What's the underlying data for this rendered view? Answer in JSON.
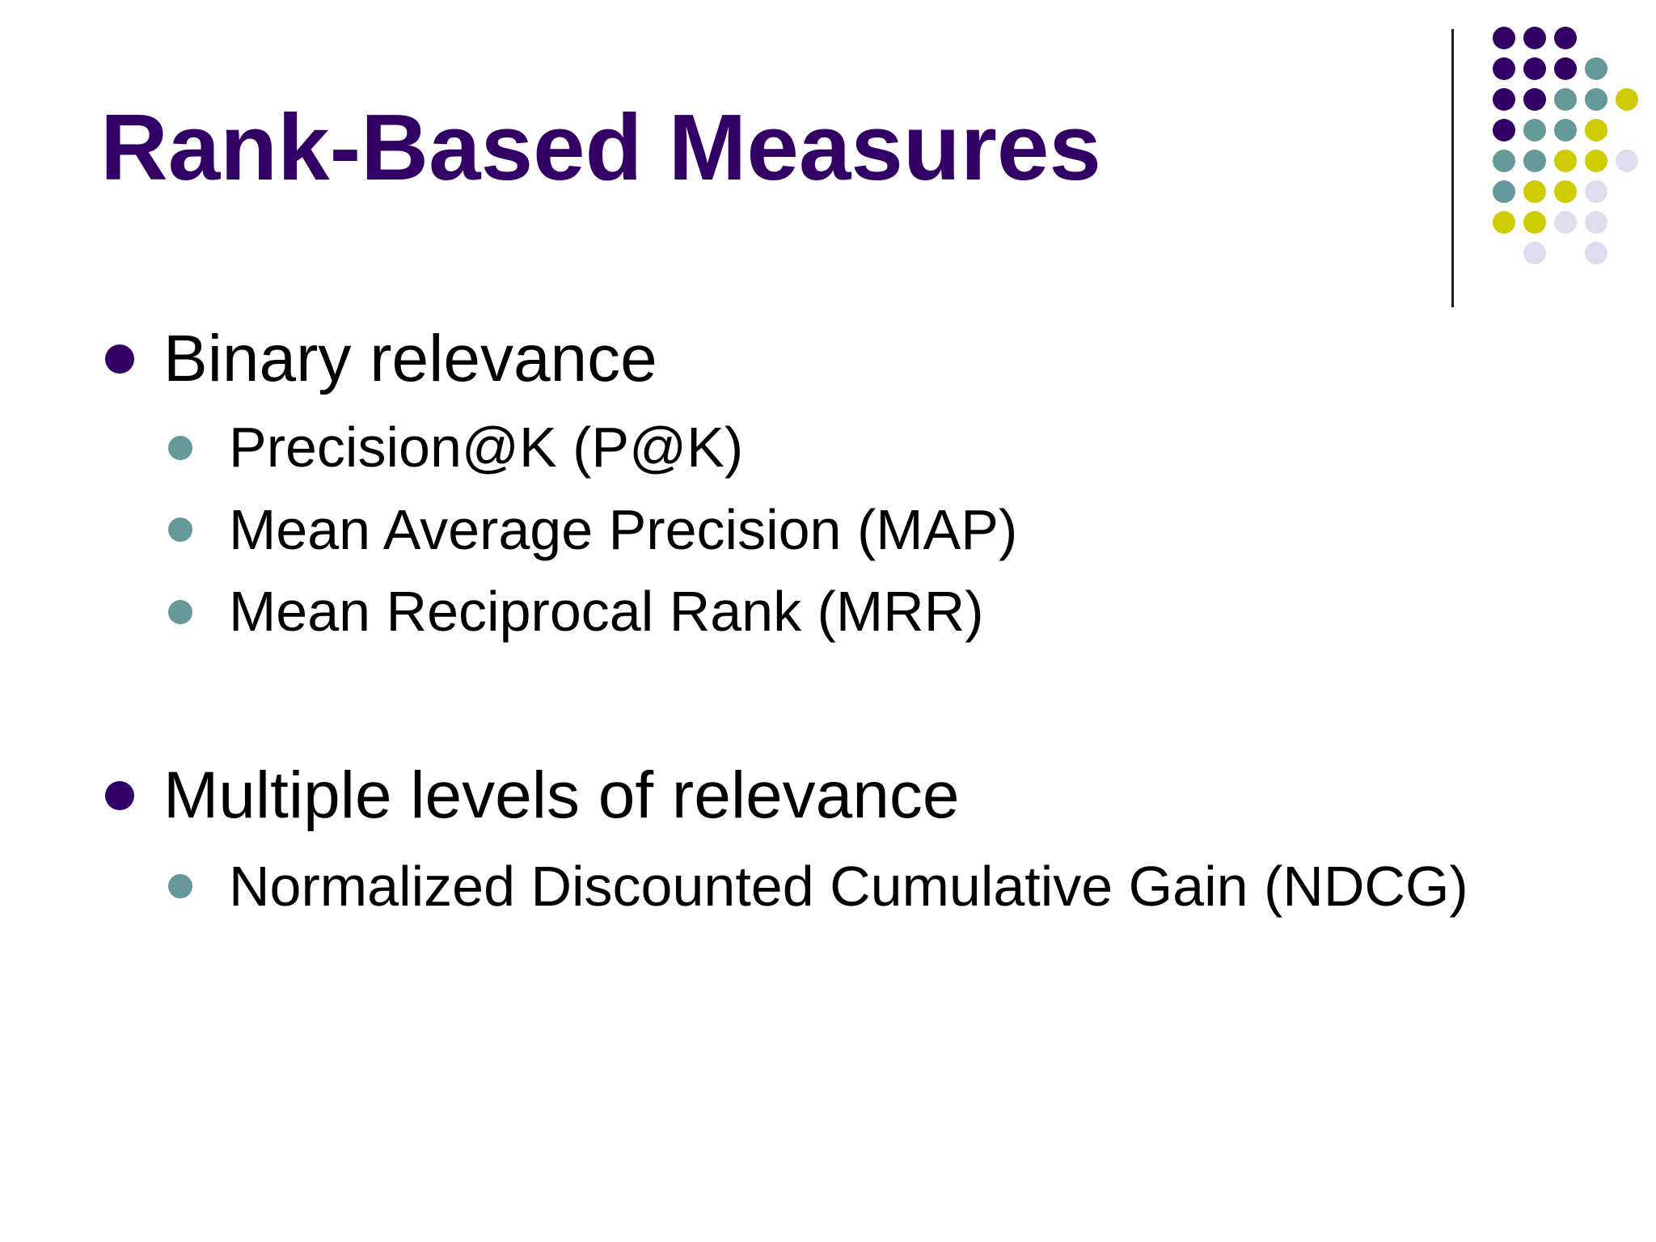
{
  "slide": {
    "title": "Rank-Based Measures",
    "sections": [
      {
        "heading": "Binary relevance",
        "items": [
          "Precision@K (P@K)",
          "Mean Average Precision (MAP)",
          "Mean Reciprocal Rank (MRR)"
        ]
      },
      {
        "heading": "Multiple levels of relevance",
        "items": [
          "Normalized Discounted Cumulative Gain (NDCG)"
        ]
      }
    ]
  },
  "colors": {
    "title": "#330066",
    "bullet_level1": "#330066",
    "bullet_level2": "#669999",
    "dot_purple": "#330066",
    "dot_teal": "#669999",
    "dot_olive": "#CCCC00",
    "dot_lavender": "#DDDDEE"
  }
}
